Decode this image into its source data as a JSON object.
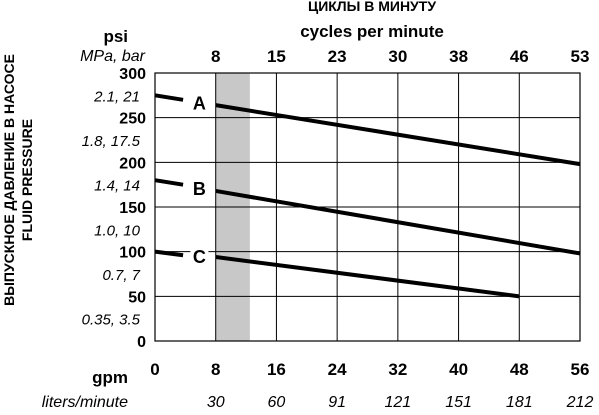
{
  "chart_data": {
    "type": "line",
    "top_axis": {
      "title_ru": "ЦИКЛЫ В МИНУТУ",
      "title_en": "cycles per minute",
      "ticks": [
        "8",
        "15",
        "23",
        "30",
        "38",
        "46",
        "53"
      ]
    },
    "left_axis": {
      "unit_primary": "psi",
      "unit_secondary": "MPa, bar",
      "title_ru": "ВЫПУСКНОЕ ДАВЛЕНИЕ В НАСОСЕ",
      "title_en": "FLUID PRESSURE",
      "ticks_psi": [
        "300",
        "250",
        "200",
        "150",
        "100",
        "50",
        "0"
      ],
      "ticks_mpa_bar": [
        "2.1, 21",
        "1.8, 17.5",
        "1.4, 14",
        "1.0, 10",
        "0.7, 7",
        "0.35, 3.5"
      ],
      "ylim": [
        0,
        300
      ]
    },
    "bottom_axis": {
      "unit_primary": "gpm",
      "unit_secondary": "liters/minute",
      "ticks_gpm": [
        "0",
        "8",
        "16",
        "24",
        "32",
        "40",
        "48",
        "56"
      ],
      "ticks_lpm": [
        "30",
        "60",
        "91",
        "121",
        "151",
        "181",
        "212"
      ],
      "xlim": [
        0,
        56
      ]
    },
    "shaded_region_gpm": [
      8,
      12.5
    ],
    "series": [
      {
        "name": "A",
        "x": [
          8,
          56
        ],
        "y": [
          264,
          198
        ]
      },
      {
        "name": "B",
        "x": [
          8,
          56
        ],
        "y": [
          168,
          98
        ]
      },
      {
        "name": "C",
        "x": [
          8,
          48
        ],
        "y": [
          94,
          50
        ]
      }
    ],
    "series_lead_in": [
      {
        "name": "A",
        "x": [
          0,
          3.7
        ],
        "y": [
          275,
          270
        ]
      },
      {
        "name": "B",
        "x": [
          0,
          3.7
        ],
        "y": [
          180,
          175
        ]
      },
      {
        "name": "C",
        "x": [
          0,
          3.7
        ],
        "y": [
          100,
          96
        ]
      }
    ]
  }
}
